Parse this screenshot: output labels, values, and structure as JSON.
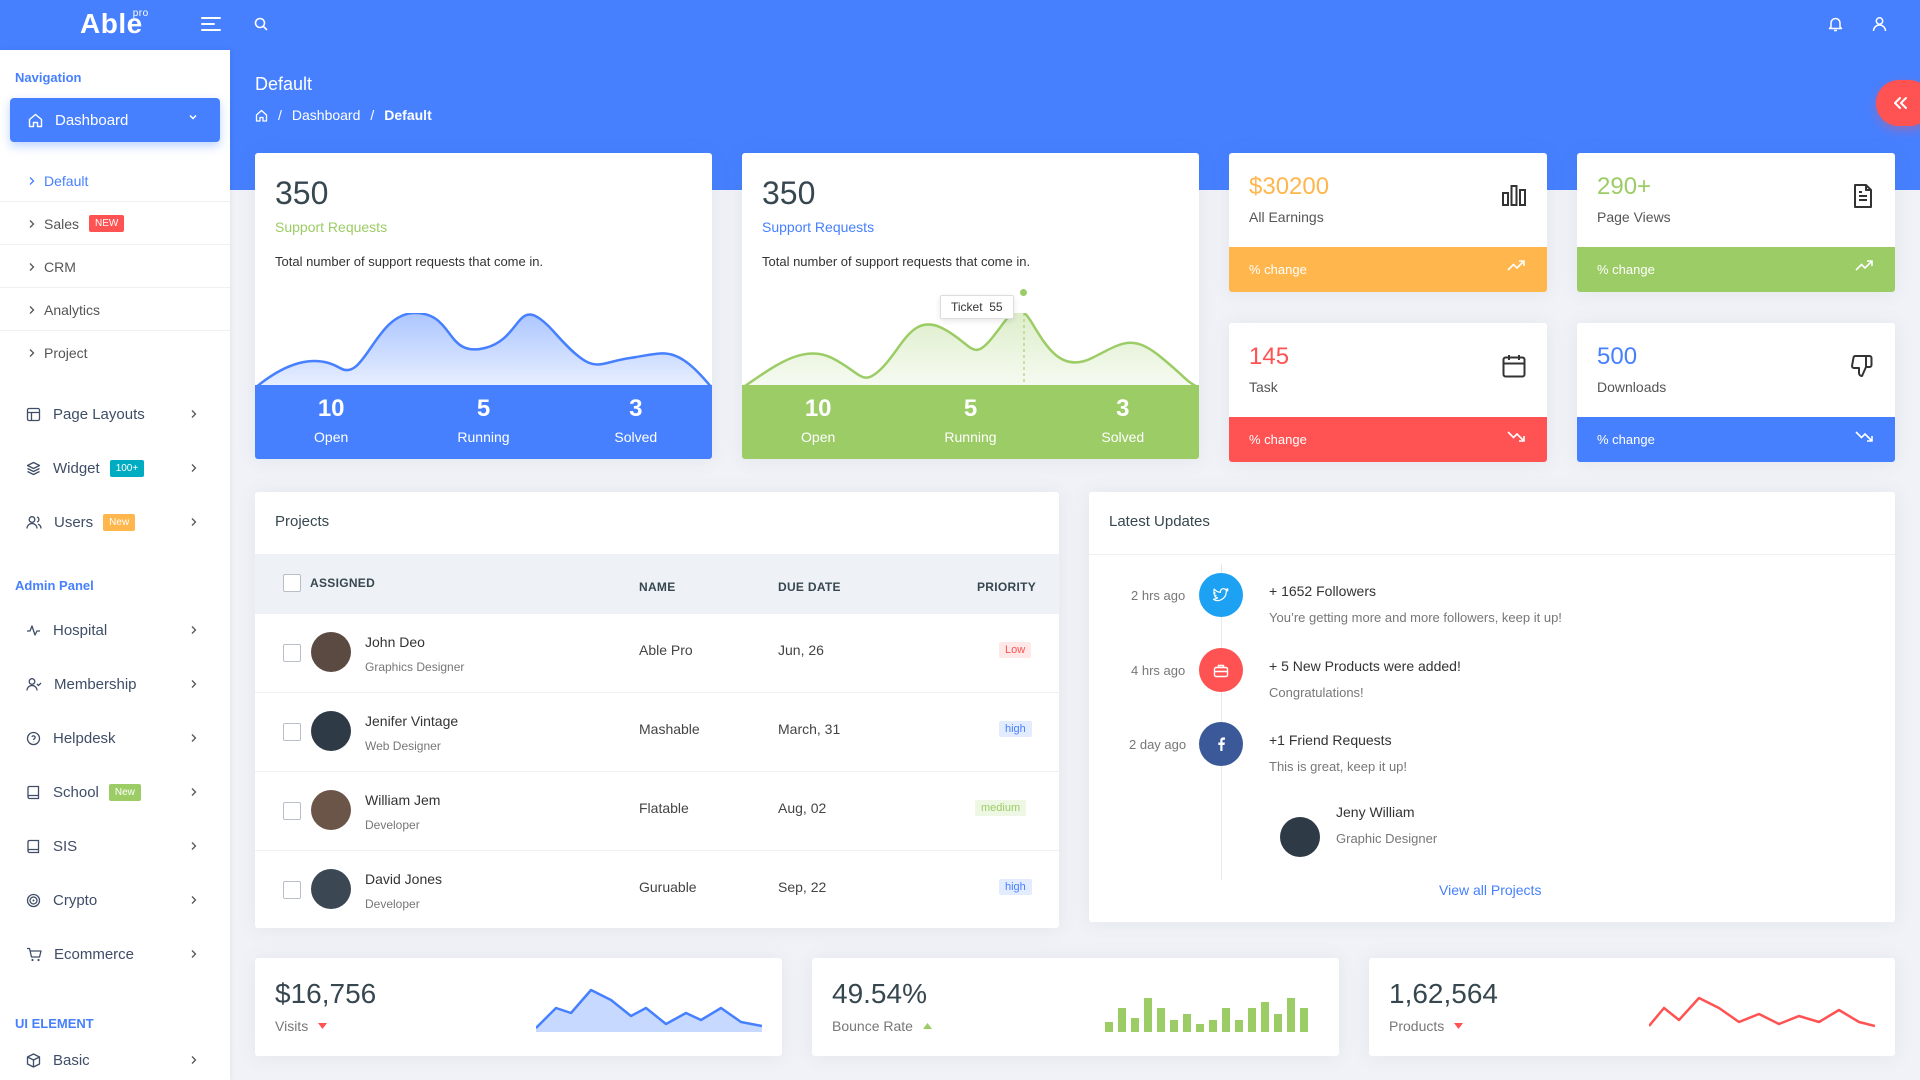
{
  "app": {
    "logo": "Able",
    "logo_sup": "pro"
  },
  "colors": {
    "primary": "#4680ff",
    "green": "#9ccc65",
    "orange": "#ffb64d",
    "red": "#ff5252",
    "twitter": "#1da1f2",
    "facebook": "#3b5998"
  },
  "header": {
    "page_title": "Default",
    "breadcrumb": [
      "Dashboard",
      "Default"
    ]
  },
  "sidebar": {
    "navigation_caption": "Navigation",
    "dashboard": "Dashboard",
    "dashboard_sub": [
      {
        "label": "Default",
        "active": true
      },
      {
        "label": "Sales",
        "badge": "NEW"
      },
      {
        "label": "CRM"
      },
      {
        "label": "Analytics"
      },
      {
        "label": "Project"
      }
    ],
    "items": [
      {
        "label": "Page Layouts",
        "icon": "layout-icon"
      },
      {
        "label": "Widget",
        "icon": "layers-icon",
        "badge": "100+"
      },
      {
        "label": "Users",
        "icon": "users-icon",
        "badge": "New"
      }
    ],
    "admin_caption": "Admin Panel",
    "admin_items": [
      {
        "label": "Hospital",
        "icon": "activity-icon"
      },
      {
        "label": "Membership",
        "icon": "user-check-icon"
      },
      {
        "label": "Helpdesk",
        "icon": "help-circle-icon"
      },
      {
        "label": "School",
        "icon": "book-icon",
        "badge": "New"
      },
      {
        "label": "SIS",
        "icon": "book-icon"
      },
      {
        "label": "Crypto",
        "icon": "target-icon"
      },
      {
        "label": "Ecommerce",
        "icon": "cart-icon"
      }
    ],
    "ui_caption": "UI ELEMENT",
    "ui_items": [
      {
        "label": "Basic",
        "icon": "box-icon"
      }
    ]
  },
  "support_cards": [
    {
      "value": "350",
      "title": "Support Requests",
      "desc": "Total number of support requests that come in.",
      "stats": [
        {
          "n": "10",
          "l": "Open"
        },
        {
          "n": "5",
          "l": "Running"
        },
        {
          "n": "3",
          "l": "Solved"
        }
      ]
    },
    {
      "value": "350",
      "title": "Support Requests",
      "desc": "Total number of support requests that come in.",
      "stats": [
        {
          "n": "10",
          "l": "Open"
        },
        {
          "n": "5",
          "l": "Running"
        },
        {
          "n": "3",
          "l": "Solved"
        }
      ],
      "tooltip": {
        "label": "Ticket",
        "value": "55"
      }
    }
  ],
  "mini_cards": [
    {
      "value": "$30200",
      "caption": "All Earnings",
      "foot": "% change",
      "icon": "bar-chart-icon",
      "trend": "trending-up-icon"
    },
    {
      "value": "290+",
      "caption": "Page Views",
      "foot": "% change",
      "icon": "file-text-icon",
      "trend": "trending-up-icon"
    },
    {
      "value": "145",
      "caption": "Task",
      "foot": "% change",
      "icon": "calendar-icon",
      "trend": "trending-down-icon"
    },
    {
      "value": "500",
      "caption": "Downloads",
      "foot": "% change",
      "icon": "thumbs-down-icon",
      "trend": "trending-down-icon"
    }
  ],
  "projects": {
    "title": "Projects",
    "headers": [
      "ASSIGNED",
      "NAME",
      "DUE DATE",
      "PRIORITY"
    ],
    "rows": [
      {
        "name": "John Deo",
        "role": "Graphics Designer",
        "project": "Able Pro",
        "due": "Jun, 26",
        "priority": "Low"
      },
      {
        "name": "Jenifer Vintage",
        "role": "Web Designer",
        "project": "Mashable",
        "due": "March, 31",
        "priority": "high"
      },
      {
        "name": "William Jem",
        "role": "Developer",
        "project": "Flatable",
        "due": "Aug, 02",
        "priority": "medium"
      },
      {
        "name": "David Jones",
        "role": "Developer",
        "project": "Guruable",
        "due": "Sep, 22",
        "priority": "high"
      }
    ]
  },
  "updates": {
    "title": "Latest Updates",
    "items": [
      {
        "time": "2 hrs ago",
        "title": "+ 1652 Followers",
        "desc": "You’re getting more and more followers, keep it up!",
        "icon": "twitter-icon"
      },
      {
        "time": "4 hrs ago",
        "title": "+ 5 New Products were added!",
        "desc": "Congratulations!",
        "icon": "briefcase-icon"
      },
      {
        "time": "2 day ago",
        "title": "+1 Friend Requests",
        "desc": "This is great, keep it up!",
        "icon": "facebook-icon"
      }
    ],
    "person": {
      "name": "Jeny William",
      "role": "Graphic Designer"
    },
    "link": "View all Projects"
  },
  "bottom_stats": [
    {
      "value": "$16,756",
      "label": "Visits",
      "direction": "down"
    },
    {
      "value": "49.54%",
      "label": "Bounce Rate",
      "direction": "up"
    },
    {
      "value": "1,62,564",
      "label": "Products",
      "direction": "down"
    }
  ]
}
